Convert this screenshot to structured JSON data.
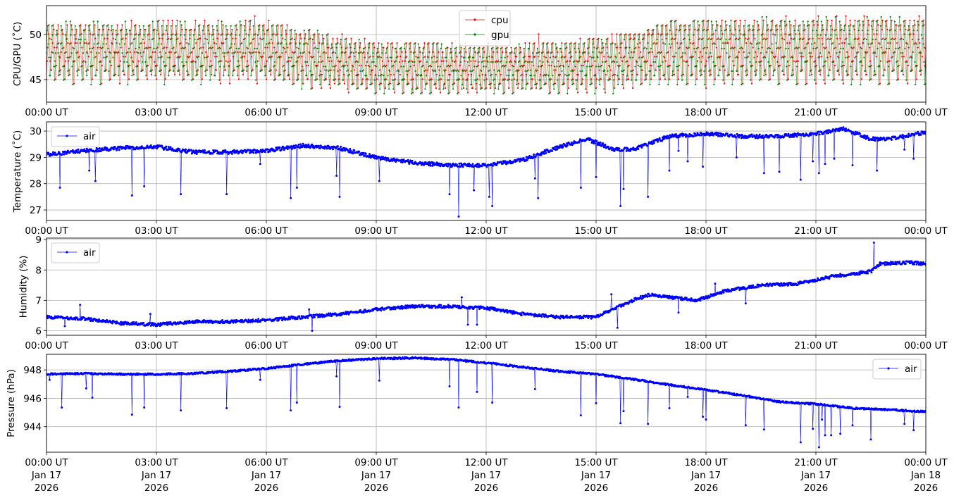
{
  "chart_data": [
    {
      "type": "line",
      "ylabel": "CPU/GPU (˚C)",
      "ylim": [
        42.5,
        53.2
      ],
      "yticks": [
        45,
        50
      ],
      "xlim": [
        "2026-01-17 00:00",
        "2026-01-18 00:00"
      ],
      "grid": true,
      "legend": "top-center",
      "series": [
        {
          "name": "cpu",
          "color": "#ff0000",
          "min": 43.5,
          "max": 52.5,
          "mean": 47.8
        },
        {
          "name": "gpu",
          "color": "#008000",
          "min": 43.5,
          "max": 52.0,
          "mean": 47.6
        }
      ]
    },
    {
      "type": "line",
      "ylabel": "Temperature (˚C)",
      "ylim": [
        26.6,
        30.35
      ],
      "yticks": [
        27,
        28,
        29,
        30
      ],
      "xlim": [
        "2026-01-17 00:00",
        "2026-01-18 00:00"
      ],
      "grid": true,
      "legend": "top-left",
      "series": [
        {
          "name": "air",
          "color": "#0000ff",
          "x": [
            "00:00",
            "01:00",
            "02:00",
            "03:00",
            "04:00",
            "05:00",
            "06:00",
            "07:00",
            "08:00",
            "09:00",
            "10:00",
            "11:00",
            "12:00",
            "13:00",
            "14:00",
            "14:45",
            "15:30",
            "16:00",
            "17:00",
            "18:00",
            "19:00",
            "20:00",
            "21:00",
            "21:45",
            "22:30",
            "23:00",
            "24:00"
          ],
          "values": [
            29.1,
            29.25,
            29.35,
            29.4,
            29.2,
            29.2,
            29.25,
            29.45,
            29.35,
            29.0,
            28.8,
            28.7,
            28.7,
            28.9,
            29.4,
            29.7,
            29.3,
            29.3,
            29.8,
            29.9,
            29.8,
            29.8,
            29.9,
            30.1,
            29.7,
            29.7,
            29.95
          ],
          "dips": [
            {
              "x": "00:22",
              "y": 27.85
            },
            {
              "x": "01:10",
              "y": 28.5
            },
            {
              "x": "01:20",
              "y": 28.1
            },
            {
              "x": "02:20",
              "y": 27.55
            },
            {
              "x": "02:40",
              "y": 27.9
            },
            {
              "x": "03:40",
              "y": 27.6
            },
            {
              "x": "04:55",
              "y": 27.6
            },
            {
              "x": "05:50",
              "y": 28.75
            },
            {
              "x": "06:40",
              "y": 27.45
            },
            {
              "x": "06:50",
              "y": 27.85
            },
            {
              "x": "07:55",
              "y": 28.3
            },
            {
              "x": "08:00",
              "y": 27.5
            },
            {
              "x": "09:05",
              "y": 28.1
            },
            {
              "x": "11:00",
              "y": 27.6
            },
            {
              "x": "11:15",
              "y": 26.75
            },
            {
              "x": "11:40",
              "y": 27.75
            },
            {
              "x": "12:05",
              "y": 27.5
            },
            {
              "x": "12:10",
              "y": 27.15
            },
            {
              "x": "13:25",
              "y": 27.45
            },
            {
              "x": "13:20",
              "y": 28.2
            },
            {
              "x": "14:35",
              "y": 27.85
            },
            {
              "x": "15:00",
              "y": 28.25
            },
            {
              "x": "15:40",
              "y": 27.15
            },
            {
              "x": "15:45",
              "y": 27.8
            },
            {
              "x": "16:25",
              "y": 27.5
            },
            {
              "x": "17:00",
              "y": 28.5
            },
            {
              "x": "17:15",
              "y": 29.25
            },
            {
              "x": "17:30",
              "y": 28.85
            },
            {
              "x": "17:55",
              "y": 28.65
            },
            {
              "x": "18:50",
              "y": 29.0
            },
            {
              "x": "19:35",
              "y": 28.4
            },
            {
              "x": "20:00",
              "y": 28.45
            },
            {
              "x": "20:35",
              "y": 28.15
            },
            {
              "x": "20:55",
              "y": 28.85
            },
            {
              "x": "21:05",
              "y": 28.4
            },
            {
              "x": "21:15",
              "y": 28.75
            },
            {
              "x": "21:30",
              "y": 28.95
            },
            {
              "x": "22:00",
              "y": 28.7
            },
            {
              "x": "22:40",
              "y": 28.5
            },
            {
              "x": "23:25",
              "y": 29.3
            },
            {
              "x": "23:40",
              "y": 28.95
            }
          ]
        }
      ]
    },
    {
      "type": "line",
      "ylabel": "Humidity (%)",
      "ylim": [
        5.85,
        9.05
      ],
      "yticks": [
        6,
        7,
        8,
        9
      ],
      "xlim": [
        "2026-01-17 00:00",
        "2026-01-18 00:00"
      ],
      "grid": true,
      "legend": "top-left",
      "series": [
        {
          "name": "air",
          "color": "#0000ff",
          "x": [
            "00:00",
            "01:00",
            "02:00",
            "03:00",
            "04:00",
            "05:00",
            "06:00",
            "07:00",
            "08:00",
            "09:00",
            "10:00",
            "11:00",
            "12:00",
            "13:00",
            "14:00",
            "15:00",
            "16:00",
            "16:30",
            "17:00",
            "17:45",
            "18:30",
            "19:30",
            "20:30",
            "21:30",
            "22:30",
            "22:45",
            "23:30",
            "24:00"
          ],
          "values": [
            6.45,
            6.4,
            6.25,
            6.2,
            6.3,
            6.3,
            6.35,
            6.45,
            6.55,
            6.7,
            6.8,
            6.8,
            6.75,
            6.55,
            6.45,
            6.45,
            7.0,
            7.2,
            7.1,
            7.0,
            7.3,
            7.5,
            7.55,
            7.8,
            7.95,
            8.2,
            8.25,
            8.2
          ],
          "dips": [
            {
              "x": "00:30",
              "y": 6.15
            },
            {
              "x": "00:55",
              "y": 6.85
            },
            {
              "x": "02:50",
              "y": 6.55
            },
            {
              "x": "07:15",
              "y": 6.0
            },
            {
              "x": "07:10",
              "y": 6.7
            },
            {
              "x": "11:30",
              "y": 6.2
            },
            {
              "x": "11:45",
              "y": 6.2
            },
            {
              "x": "11:20",
              "y": 7.1
            },
            {
              "x": "15:35",
              "y": 6.1
            },
            {
              "x": "15:25",
              "y": 7.2
            },
            {
              "x": "17:15",
              "y": 6.6
            },
            {
              "x": "18:15",
              "y": 7.55
            },
            {
              "x": "19:05",
              "y": 6.9
            },
            {
              "x": "22:35",
              "y": 8.9
            }
          ]
        }
      ]
    },
    {
      "type": "line",
      "ylabel": "Pressure (hPa)",
      "ylim": [
        942.2,
        949.1
      ],
      "yticks": [
        944,
        946,
        948
      ],
      "xlim": [
        "2026-01-17 00:00",
        "2026-01-18 00:00"
      ],
      "grid": true,
      "legend": "top-right",
      "series": [
        {
          "name": "air",
          "color": "#0000ff",
          "x": [
            "00:00",
            "01:00",
            "02:00",
            "03:00",
            "04:00",
            "05:00",
            "06:00",
            "07:00",
            "08:00",
            "09:00",
            "10:00",
            "11:00",
            "12:00",
            "13:00",
            "14:00",
            "15:00",
            "16:00",
            "17:00",
            "18:00",
            "19:00",
            "20:00",
            "21:00",
            "22:00",
            "23:00",
            "24:00"
          ],
          "values": [
            947.7,
            947.75,
            947.7,
            947.7,
            947.75,
            947.9,
            948.1,
            948.4,
            948.65,
            948.8,
            948.85,
            948.75,
            948.5,
            948.2,
            947.9,
            947.7,
            947.35,
            946.95,
            946.6,
            946.2,
            945.75,
            945.6,
            945.3,
            945.2,
            945.05
          ],
          "dips": [
            {
              "x": "00:05",
              "y": 947.3
            },
            {
              "x": "00:25",
              "y": 945.35
            },
            {
              "x": "01:05",
              "y": 946.7
            },
            {
              "x": "01:15",
              "y": 946.05
            },
            {
              "x": "02:20",
              "y": 944.85
            },
            {
              "x": "02:40",
              "y": 945.35
            },
            {
              "x": "03:40",
              "y": 945.15
            },
            {
              "x": "04:55",
              "y": 945.3
            },
            {
              "x": "05:50",
              "y": 947.3
            },
            {
              "x": "06:40",
              "y": 945.15
            },
            {
              "x": "06:50",
              "y": 945.7
            },
            {
              "x": "08:00",
              "y": 945.4
            },
            {
              "x": "07:55",
              "y": 947.55
            },
            {
              "x": "09:05",
              "y": 947.25
            },
            {
              "x": "11:00",
              "y": 946.85
            },
            {
              "x": "11:15",
              "y": 945.35
            },
            {
              "x": "11:45",
              "y": 946.45
            },
            {
              "x": "12:10",
              "y": 945.7
            },
            {
              "x": "13:20",
              "y": 946.65
            },
            {
              "x": "14:35",
              "y": 944.8
            },
            {
              "x": "15:00",
              "y": 945.65
            },
            {
              "x": "15:40",
              "y": 944.25
            },
            {
              "x": "15:45",
              "y": 945.1
            },
            {
              "x": "16:25",
              "y": 944.2
            },
            {
              "x": "17:00",
              "y": 945.3
            },
            {
              "x": "17:30",
              "y": 946.1
            },
            {
              "x": "17:55",
              "y": 944.7
            },
            {
              "x": "18:00",
              "y": 944.5
            },
            {
              "x": "19:05",
              "y": 944.1
            },
            {
              "x": "19:35",
              "y": 943.8
            },
            {
              "x": "20:35",
              "y": 942.9
            },
            {
              "x": "20:55",
              "y": 943.85
            },
            {
              "x": "21:05",
              "y": 942.55
            },
            {
              "x": "21:10",
              "y": 944.5
            },
            {
              "x": "21:15",
              "y": 943.4
            },
            {
              "x": "21:25",
              "y": 943.4
            },
            {
              "x": "21:40",
              "y": 943.5
            },
            {
              "x": "22:00",
              "y": 944.1
            },
            {
              "x": "22:30",
              "y": 943.1
            },
            {
              "x": "23:25",
              "y": 944.2
            },
            {
              "x": "23:40",
              "y": 943.75
            }
          ]
        }
      ]
    }
  ],
  "x_tick_labels": [
    "00:00 UT",
    "03:00 UT",
    "06:00 UT",
    "09:00 UT",
    "12:00 UT",
    "15:00 UT",
    "18:00 UT",
    "21:00 UT",
    "00:00 UT"
  ],
  "x_tick_dates": [
    [
      "Jan 17",
      "2026"
    ],
    [
      "Jan 17",
      "2026"
    ],
    [
      "Jan 17",
      "2026"
    ],
    [
      "Jan 17",
      "2026"
    ],
    [
      "Jan 17",
      "2026"
    ],
    [
      "Jan 17",
      "2026"
    ],
    [
      "Jan 17",
      "2026"
    ],
    [
      "Jan 17",
      "2026"
    ],
    [
      "Jan 18",
      "2026"
    ]
  ]
}
